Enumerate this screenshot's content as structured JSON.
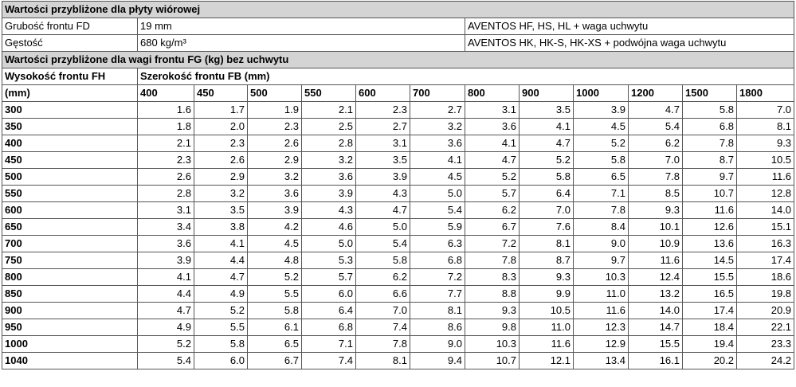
{
  "section1": {
    "title": "Wartości przybliżone dla płyty wiórowej",
    "rows": [
      [
        "Grubość frontu FD",
        "19 mm",
        "AVENTOS HF, HS, HL + waga uchwytu"
      ],
      [
        "Gęstość",
        "680 kg/m³",
        "AVENTOS HK, HK-S, HK-XS + podwójna waga uchwytu"
      ]
    ]
  },
  "section2": {
    "title": "Wartości przybliżone dla wagi frontu FG (kg) bez uchwytu",
    "row_header": [
      "Wysokość frontu FH",
      "(mm)"
    ],
    "column_header": "Szerokość frontu FB (mm)",
    "widths": [
      "400",
      "450",
      "500",
      "550",
      "600",
      "700",
      "800",
      "900",
      "1000",
      "1200",
      "1500",
      "1800"
    ],
    "rows": [
      {
        "height": "300",
        "values": [
          "1.6",
          "1.7",
          "1.9",
          "2.1",
          "2.3",
          "2.7",
          "3.1",
          "3.5",
          "3.9",
          "4.7",
          "5.8",
          "7.0"
        ]
      },
      {
        "height": "350",
        "values": [
          "1.8",
          "2.0",
          "2.3",
          "2.5",
          "2.7",
          "3.2",
          "3.6",
          "4.1",
          "4.5",
          "5.4",
          "6.8",
          "8.1"
        ]
      },
      {
        "height": "400",
        "values": [
          "2.1",
          "2.3",
          "2.6",
          "2.8",
          "3.1",
          "3.6",
          "4.1",
          "4.7",
          "5.2",
          "6.2",
          "7.8",
          "9.3"
        ]
      },
      {
        "height": "450",
        "values": [
          "2.3",
          "2.6",
          "2.9",
          "3.2",
          "3.5",
          "4.1",
          "4.7",
          "5.2",
          "5.8",
          "7.0",
          "8.7",
          "10.5"
        ]
      },
      {
        "height": "500",
        "values": [
          "2.6",
          "2.9",
          "3.2",
          "3.6",
          "3.9",
          "4.5",
          "5.2",
          "5.8",
          "6.5",
          "7.8",
          "9.7",
          "11.6"
        ]
      },
      {
        "height": "550",
        "values": [
          "2.8",
          "3.2",
          "3.6",
          "3.9",
          "4.3",
          "5.0",
          "5.7",
          "6.4",
          "7.1",
          "8.5",
          "10.7",
          "12.8"
        ]
      },
      {
        "height": "600",
        "values": [
          "3.1",
          "3.5",
          "3.9",
          "4.3",
          "4.7",
          "5.4",
          "6.2",
          "7.0",
          "7.8",
          "9.3",
          "11.6",
          "14.0"
        ]
      },
      {
        "height": "650",
        "values": [
          "3.4",
          "3.8",
          "4.2",
          "4.6",
          "5.0",
          "5.9",
          "6.7",
          "7.6",
          "8.4",
          "10.1",
          "12.6",
          "15.1"
        ]
      },
      {
        "height": "700",
        "values": [
          "3.6",
          "4.1",
          "4.5",
          "5.0",
          "5.4",
          "6.3",
          "7.2",
          "8.1",
          "9.0",
          "10.9",
          "13.6",
          "16.3"
        ]
      },
      {
        "height": "750",
        "values": [
          "3.9",
          "4.4",
          "4.8",
          "5.3",
          "5.8",
          "6.8",
          "7.8",
          "8.7",
          "9.7",
          "11.6",
          "14.5",
          "17.4"
        ]
      },
      {
        "height": "800",
        "values": [
          "4.1",
          "4.7",
          "5.2",
          "5.7",
          "6.2",
          "7.2",
          "8.3",
          "9.3",
          "10.3",
          "12.4",
          "15.5",
          "18.6"
        ]
      },
      {
        "height": "850",
        "values": [
          "4.4",
          "4.9",
          "5.5",
          "6.0",
          "6.6",
          "7.7",
          "8.8",
          "9.9",
          "11.0",
          "13.2",
          "16.5",
          "19.8"
        ]
      },
      {
        "height": "900",
        "values": [
          "4.7",
          "5.2",
          "5.8",
          "6.4",
          "7.0",
          "8.1",
          "9.3",
          "10.5",
          "11.6",
          "14.0",
          "17.4",
          "20.9"
        ]
      },
      {
        "height": "950",
        "values": [
          "4.9",
          "5.5",
          "6.1",
          "6.8",
          "7.4",
          "8.6",
          "9.8",
          "11.0",
          "12.3",
          "14.7",
          "18.4",
          "22.1"
        ]
      },
      {
        "height": "1000",
        "values": [
          "5.2",
          "5.8",
          "6.5",
          "7.1",
          "7.8",
          "9.0",
          "10.3",
          "11.6",
          "12.9",
          "15.5",
          "19.4",
          "23.3"
        ]
      },
      {
        "height": "1040",
        "values": [
          "5.4",
          "6.0",
          "6.7",
          "7.4",
          "8.1",
          "9.4",
          "10.7",
          "12.1",
          "13.4",
          "16.1",
          "20.2",
          "24.2"
        ]
      }
    ]
  }
}
